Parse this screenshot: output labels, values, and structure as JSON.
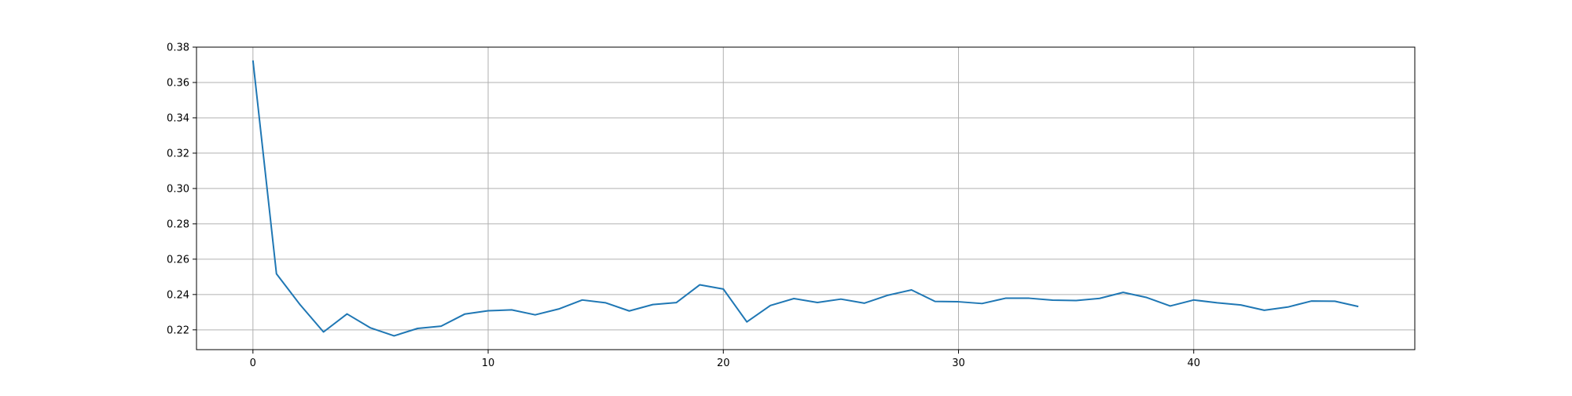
{
  "chart_data": {
    "type": "line",
    "title": "",
    "xlabel": "",
    "ylabel": "",
    "xlim": [
      -2.4,
      49.4
    ],
    "ylim": [
      0.2088,
      0.38
    ],
    "grid": true,
    "legend": "none",
    "x_ticks": [
      0,
      10,
      20,
      30,
      40
    ],
    "y_ticks": [
      0.22,
      0.24,
      0.26,
      0.28,
      0.3,
      0.32,
      0.34,
      0.36,
      0.38
    ],
    "x_tick_labels": [
      "0",
      "10",
      "20",
      "30",
      "40"
    ],
    "y_tick_labels": [
      "0.22",
      "0.24",
      "0.26",
      "0.28",
      "0.30",
      "0.32",
      "0.34",
      "0.36",
      "0.38"
    ],
    "series": [
      {
        "color": "#1f77b4",
        "x": [
          0,
          1,
          2,
          3,
          4,
          5,
          6,
          7,
          8,
          9,
          10,
          11,
          12,
          13,
          14,
          15,
          16,
          17,
          18,
          19,
          20,
          21,
          22,
          23,
          24,
          25,
          26,
          27,
          28,
          29,
          30,
          31,
          32,
          33,
          34,
          35,
          36,
          37,
          38,
          39,
          40,
          41,
          42,
          43,
          44,
          45,
          46,
          47
        ],
        "values": [
          0.3725,
          0.2517,
          0.2343,
          0.2188,
          0.229,
          0.2211,
          0.2166,
          0.2208,
          0.2221,
          0.2289,
          0.2308,
          0.2313,
          0.2285,
          0.2318,
          0.2369,
          0.2353,
          0.2307,
          0.2343,
          0.2354,
          0.2455,
          0.2431,
          0.2245,
          0.2338,
          0.2377,
          0.2355,
          0.2374,
          0.2351,
          0.2396,
          0.2426,
          0.2361,
          0.2359,
          0.2349,
          0.2379,
          0.2379,
          0.2368,
          0.2366,
          0.2378,
          0.2412,
          0.2383,
          0.2335,
          0.2369,
          0.2353,
          0.2341,
          0.2311,
          0.2329,
          0.2363,
          0.2362,
          0.2332
        ]
      }
    ]
  }
}
